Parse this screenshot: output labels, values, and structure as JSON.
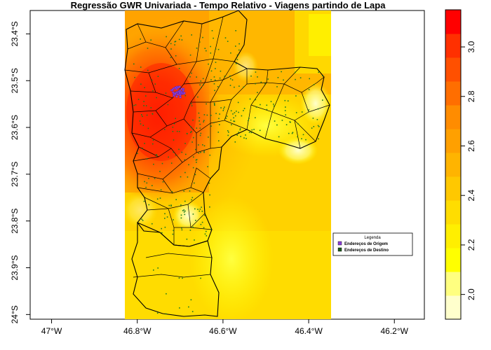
{
  "title": "Regressão GWR Univariada - Tempo Relativo - Viagens partindo de Lapa",
  "x_axis": {
    "ticks": [
      "47°W",
      "46.8°W",
      "46.6°W",
      "46.4°W",
      "46.2°W"
    ],
    "values": [
      -47.0,
      -46.8,
      -46.6,
      -46.4,
      -46.2
    ],
    "range": [
      -47.05,
      -46.13
    ]
  },
  "y_axis": {
    "ticks": [
      "23.4°S",
      "23.5°S",
      "23.6°S",
      "23.7°S",
      "23.8°S",
      "23.9°S",
      "24°S"
    ],
    "values": [
      -23.4,
      -23.5,
      -23.6,
      -23.7,
      -23.8,
      -23.9,
      -24.0
    ],
    "range": [
      -24.01,
      -23.35
    ]
  },
  "legend": {
    "title": "Legenda",
    "items": [
      {
        "label": "Endereços de Origem",
        "color": "#8b3fd9"
      },
      {
        "label": "Endereços de Destino",
        "color": "#1e5a1e"
      }
    ]
  },
  "colorbar": {
    "ticks": [
      "2.0",
      "2.2",
      "2.4",
      "2.6",
      "2.8",
      "3.0"
    ],
    "tick_values": [
      2.0,
      2.2,
      2.4,
      2.6,
      2.8,
      3.0
    ],
    "range": [
      1.9,
      3.15
    ],
    "colors": [
      "#ffffcc",
      "#ffff80",
      "#ffff00",
      "#ffef00",
      "#ffdd00",
      "#ffc800",
      "#ffb400",
      "#ffa000",
      "#ff8c00",
      "#ff6e00",
      "#ff5000",
      "#ff3000",
      "#ff0000"
    ]
  }
}
